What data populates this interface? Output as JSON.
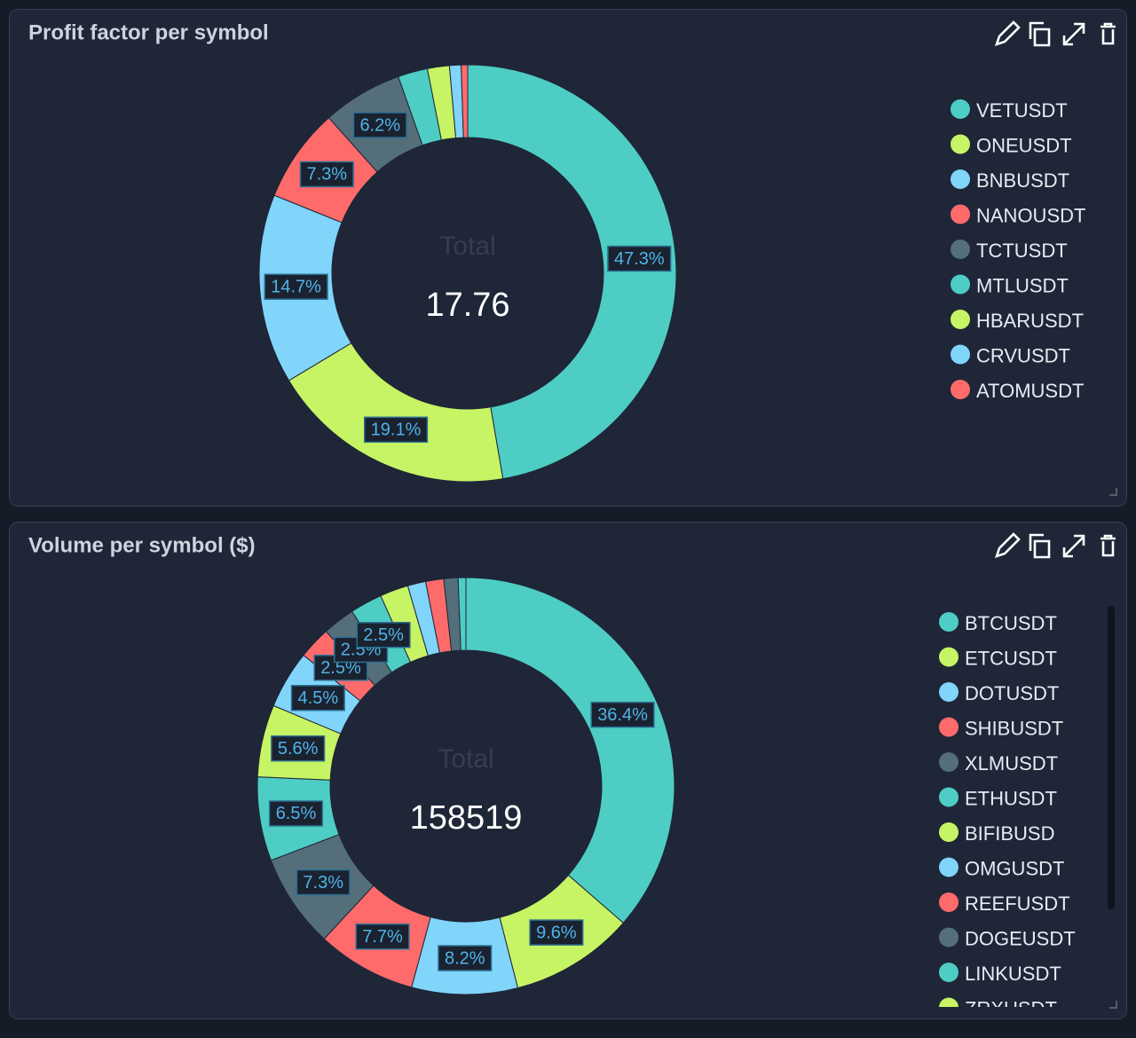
{
  "chart_data": [
    {
      "type": "pie",
      "title": "Profit factor per symbol",
      "center_label": "Total",
      "total": 17.76,
      "categories": [
        "VETUSDT",
        "ONEUSDT",
        "BNBUSDT",
        "NANOUSDT",
        "TCTUSDT",
        "MTLUSDT",
        "HBARUSDT",
        "CRVUSDT",
        "ATOMUSDT"
      ],
      "values": [
        47.3,
        19.1,
        14.7,
        7.3,
        6.2,
        2.3,
        1.7,
        0.9,
        0.5
      ],
      "value_labels": [
        "47.3%",
        "19.1%",
        "14.7%",
        "7.3%",
        "6.2%",
        null,
        null,
        null,
        null
      ],
      "colors": [
        "#4ecdc4",
        "#c7f464",
        "#81d4fa",
        "#ff6b6b",
        "#546e7a",
        "#4ecdc4",
        "#c7f464",
        "#81d4fa",
        "#ff6b6b"
      ],
      "legend": "right"
    },
    {
      "type": "pie",
      "title": "Volume per symbol ($)",
      "center_label": "Total",
      "total": 158519,
      "categories": [
        "BTCUSDT",
        "ETCUSDT",
        "DOTUSDT",
        "SHIBUSDT",
        "XLMUSDT",
        "ETHUSDT",
        "BIFIBUSD",
        "OMGUSDT",
        "REEFUSDT",
        "DOGEUSDT",
        "LINKUSDT",
        "ZRXUSDT",
        null,
        null,
        null,
        null
      ],
      "values": [
        36.4,
        9.6,
        8.2,
        7.7,
        7.3,
        6.5,
        5.6,
        4.5,
        2.5,
        2.5,
        2.5,
        2.2,
        1.4,
        1.4,
        1.1,
        0.6
      ],
      "value_labels": [
        "36.4%",
        "9.6%",
        "8.2%",
        "7.7%",
        "7.3%",
        "6.5%",
        "5.6%",
        "4.5%",
        "2.5%",
        "2.5%",
        "2.5%",
        null,
        null,
        null,
        null,
        null
      ],
      "colors": [
        "#4ecdc4",
        "#c7f464",
        "#81d4fa",
        "#ff6b6b",
        "#546e7a",
        "#4ecdc4",
        "#c7f464",
        "#81d4fa",
        "#ff6b6b",
        "#546e7a",
        "#4ecdc4",
        "#c7f464",
        "#81d4fa",
        "#ff6b6b",
        "#546e7a",
        "#4ecdc4"
      ],
      "legend": "right"
    }
  ]
}
